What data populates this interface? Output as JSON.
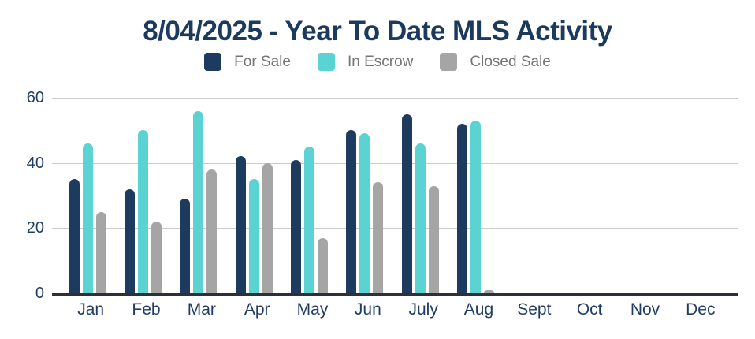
{
  "title": "8/04/2025 - Year To Date MLS Activity",
  "colors": {
    "title_text": "#1b3a5e",
    "axis_text": "#1f3d63",
    "legend_text": "#757575",
    "gridline": "#cccccc",
    "baseline": "#2e3038",
    "for_sale": "#1c3b5e",
    "in_escrow": "#5cd3d3",
    "closed_sale": "#a5a5a5"
  },
  "chart_data": {
    "type": "bar",
    "title": "8/04/2025 - Year To Date MLS Activity",
    "categories": [
      "Jan",
      "Feb",
      "Mar",
      "Apr",
      "May",
      "Jun",
      "July",
      "Aug",
      "Sept",
      "Oct",
      "Nov",
      "Dec"
    ],
    "series": [
      {
        "name": "For Sale",
        "color": "#1c3b5e",
        "values": [
          35,
          32,
          29,
          42,
          41,
          50,
          55,
          52,
          0,
          0,
          0,
          0
        ]
      },
      {
        "name": "In Escrow",
        "color": "#5cd3d3",
        "values": [
          46,
          50,
          56,
          35,
          45,
          49,
          46,
          53,
          0,
          0,
          0,
          0
        ]
      },
      {
        "name": "Closed Sale",
        "color": "#a5a5a5",
        "values": [
          25,
          22,
          38,
          40,
          17,
          34,
          33,
          1,
          0,
          0,
          0,
          0
        ]
      }
    ],
    "xlabel": "",
    "ylabel": "",
    "ylim": [
      0,
      60
    ],
    "yticks": [
      0,
      20,
      40,
      60
    ],
    "grid": true,
    "legend_position": "top"
  }
}
